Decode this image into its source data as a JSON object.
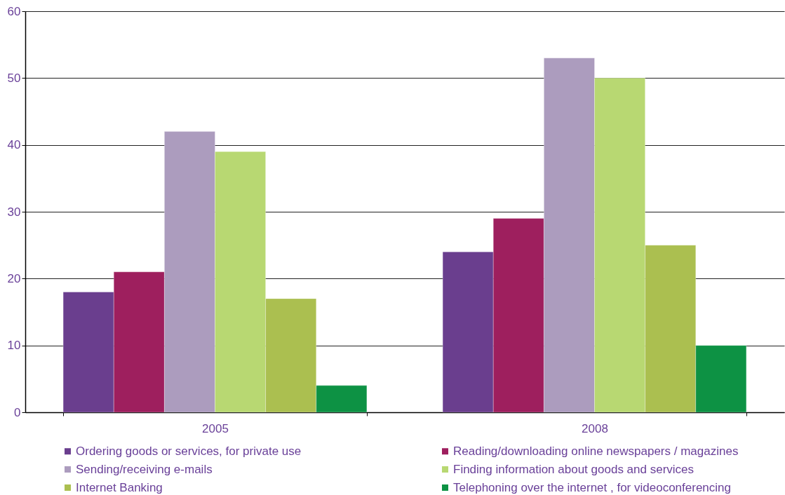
{
  "chart_data": {
    "type": "bar",
    "categories": [
      "2005",
      "2008"
    ],
    "series": [
      {
        "name": "Ordering goods or services, for private use",
        "color": "#6a3e8e",
        "values": [
          18,
          24
        ]
      },
      {
        "name": "Reading/downloading online newspapers / magazines",
        "color": "#9e1f5e",
        "values": [
          21,
          29
        ]
      },
      {
        "name": "Sending/receiving e-mails",
        "color": "#ac9cbe",
        "values": [
          42,
          53
        ]
      },
      {
        "name": "Finding information about goods and services",
        "color": "#b8d872",
        "values": [
          39,
          50
        ]
      },
      {
        "name": "Internet Banking",
        "color": "#abbf50",
        "values": [
          17,
          25
        ]
      },
      {
        "name": "Telephoning over the internet , for videoconferencing",
        "color": "#0d9244",
        "values": [
          4,
          10
        ]
      }
    ],
    "ylim": [
      0,
      60
    ],
    "yticks": [
      0,
      10,
      20,
      30,
      40,
      50,
      60
    ],
    "grid": "y",
    "legend": "bottom"
  }
}
